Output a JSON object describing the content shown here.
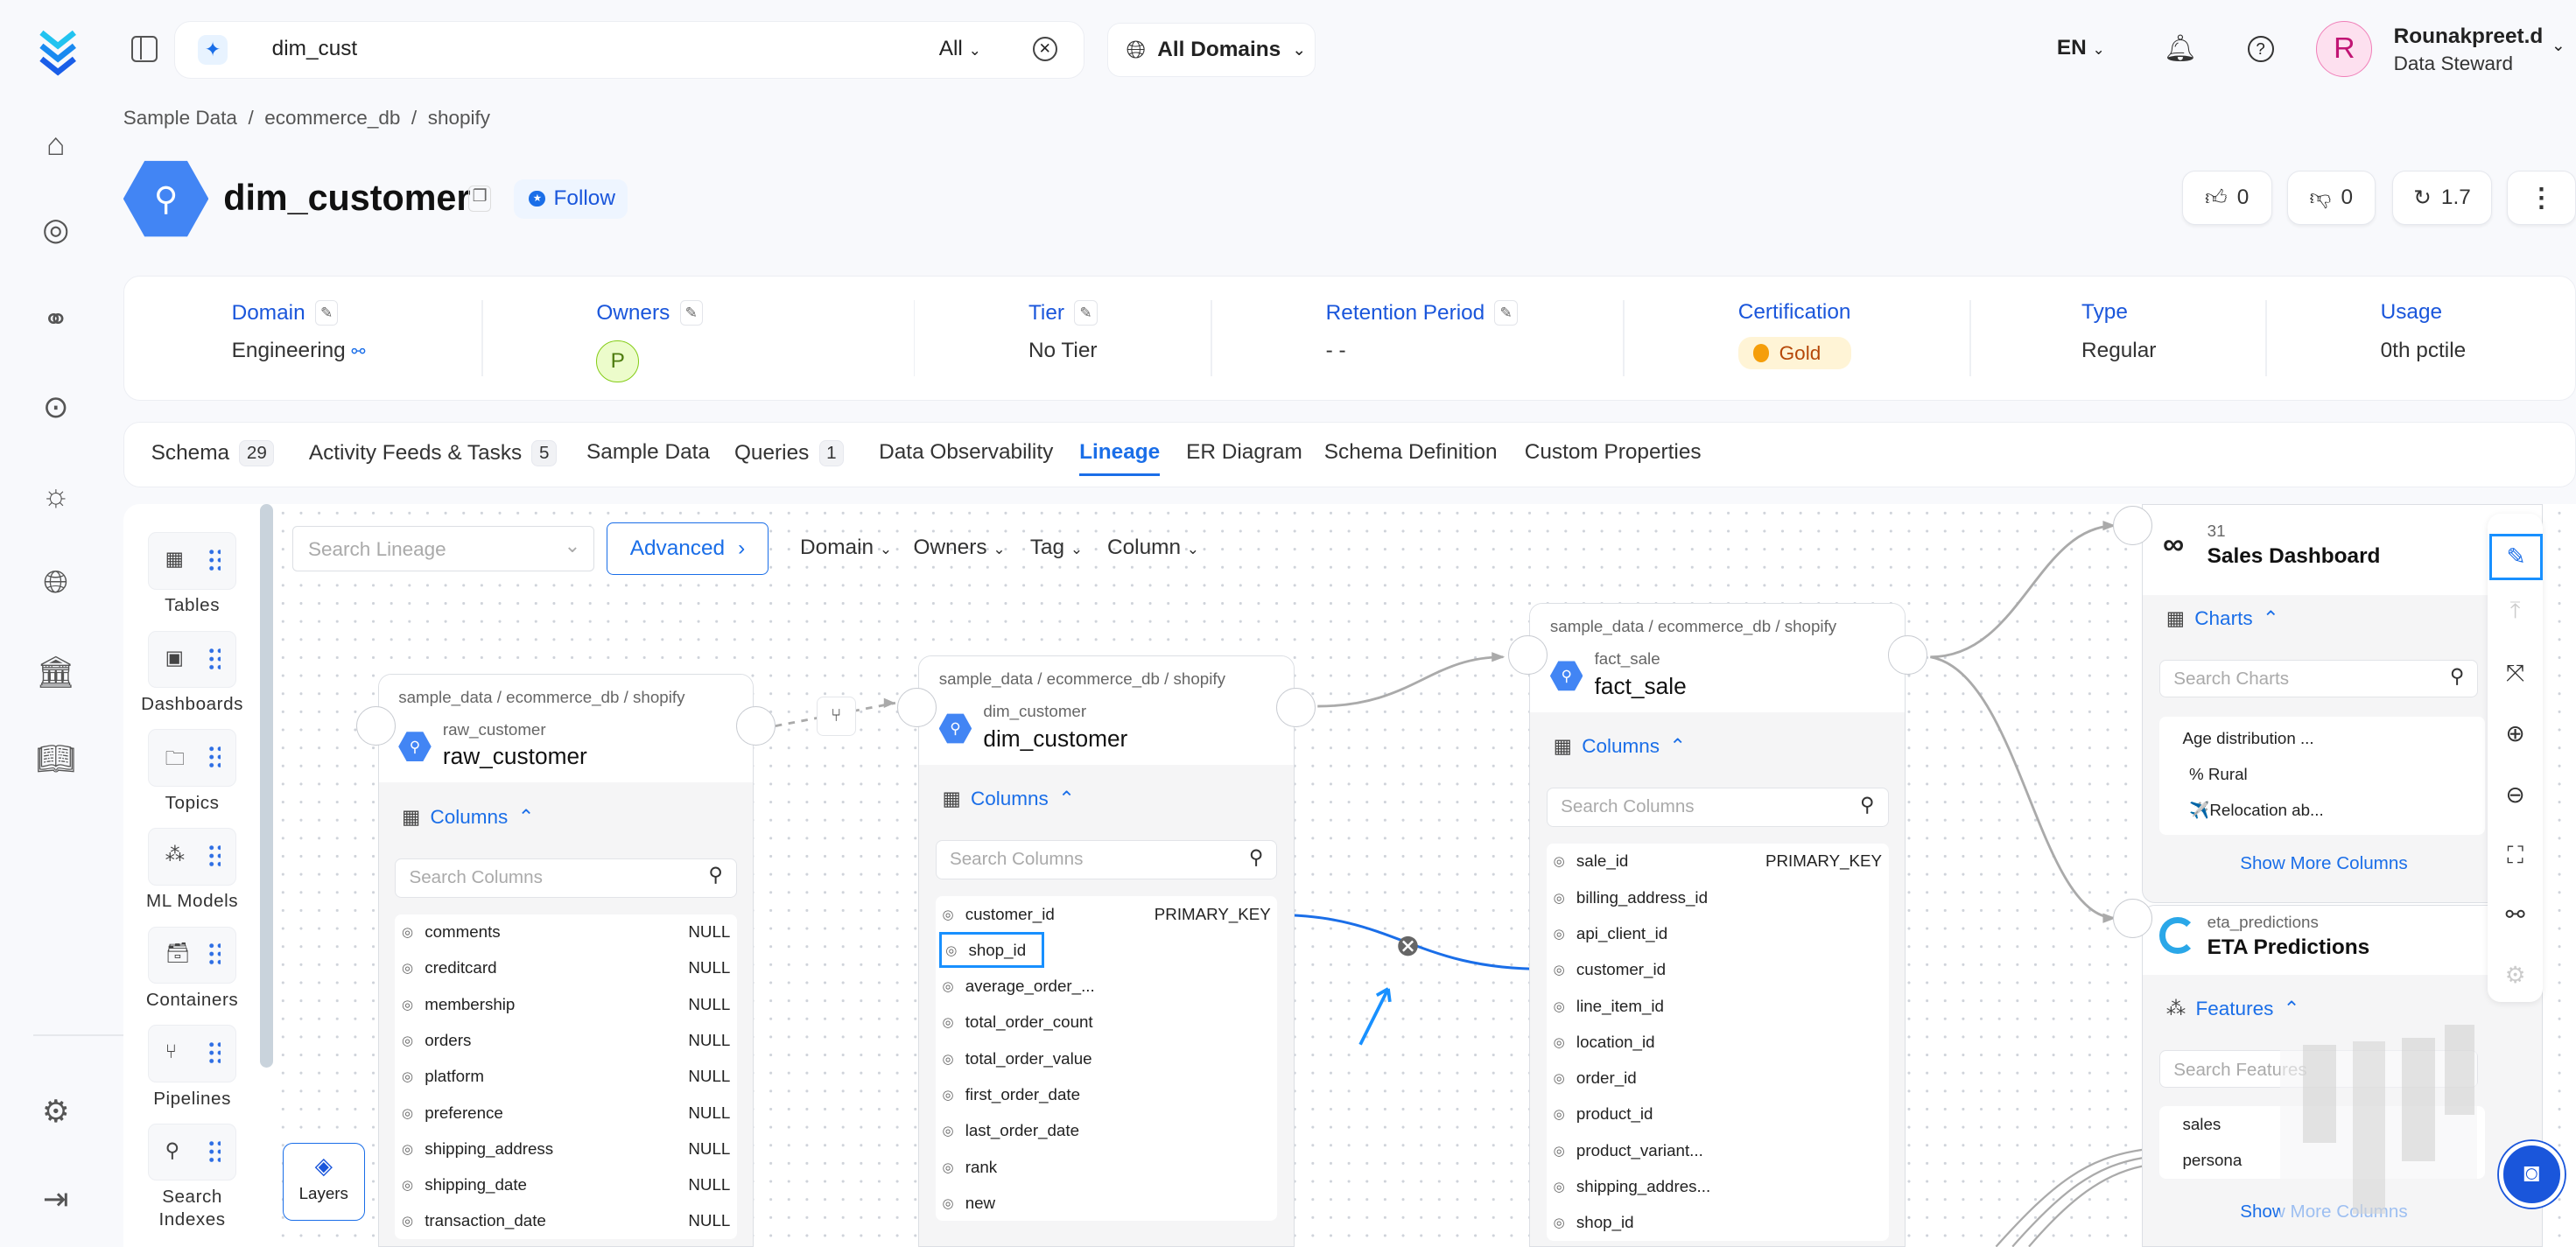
{
  "topbar": {
    "search_value": "dim_cust",
    "search_scope": "All",
    "domain_selector": "All Domains",
    "language": "EN",
    "user": {
      "initial": "R",
      "name": "Rounakpreet.d",
      "role": "Data Steward"
    }
  },
  "nav_icons": [
    "home-icon",
    "explore-icon",
    "lineage-icon",
    "observability-icon",
    "insights-icon",
    "domains-icon",
    "governance-icon",
    "glossary-icon",
    "settings-icon",
    "logout-icon"
  ],
  "breadcrumb": [
    "Sample Data",
    "ecommerce_db",
    "shopify"
  ],
  "entity": {
    "title": "dim_customer",
    "follow_label": "Follow",
    "likes": "0",
    "dislikes": "0",
    "version": "1.7"
  },
  "info": {
    "domain": {
      "label": "Domain",
      "value": "Engineering"
    },
    "owners": {
      "label": "Owners",
      "initial": "P"
    },
    "tier": {
      "label": "Tier",
      "value": "No Tier"
    },
    "retention": {
      "label": "Retention Period",
      "value": "- -"
    },
    "certification": {
      "label": "Certification",
      "value": "Gold"
    },
    "type": {
      "label": "Type",
      "value": "Regular"
    },
    "usage": {
      "label": "Usage",
      "value": "0th pctile"
    }
  },
  "tabs": [
    {
      "label": "Schema",
      "count": "29"
    },
    {
      "label": "Activity Feeds & Tasks",
      "count": "5"
    },
    {
      "label": "Sample Data"
    },
    {
      "label": "Queries",
      "count": "1"
    },
    {
      "label": "Data Observability"
    },
    {
      "label": "Lineage",
      "active": true
    },
    {
      "label": "ER Diagram"
    },
    {
      "label": "Schema Definition"
    },
    {
      "label": "Custom Properties"
    }
  ],
  "node_types": [
    "Tables",
    "Dashboards",
    "Topics",
    "ML Models",
    "Containers",
    "Pipelines",
    "Search Indexes"
  ],
  "lineage_toolbar": {
    "search_placeholder": "Search Lineage",
    "advanced": "Advanced",
    "filters": [
      "Domain",
      "Owners",
      "Tag",
      "Column"
    ],
    "layers": "Layers"
  },
  "nodes": {
    "raw_customer": {
      "breadcrumb": "sample_data  /  ecommerce_db  /  shopify",
      "small": "raw_customer",
      "name": "raw_customer",
      "columns_label": "Columns",
      "search_placeholder": "Search Columns",
      "columns": [
        [
          "comments",
          "NULL"
        ],
        [
          "creditcard",
          "NULL"
        ],
        [
          "membership",
          "NULL"
        ],
        [
          "orders",
          "NULL"
        ],
        [
          "platform",
          "NULL"
        ],
        [
          "preference",
          "NULL"
        ],
        [
          "shipping_address",
          "NULL"
        ],
        [
          "shipping_date",
          "NULL"
        ],
        [
          "transaction_date",
          "NULL"
        ]
      ]
    },
    "dim_customer": {
      "breadcrumb": "sample_data  /  ecommerce_db  /  shopify",
      "small": "dim_customer",
      "name": "dim_customer",
      "columns_label": "Columns",
      "search_placeholder": "Search Columns",
      "columns": [
        [
          "customer_id",
          "PRIMARY_KEY"
        ],
        [
          "shop_id",
          ""
        ],
        [
          "average_order_...",
          ""
        ],
        [
          "total_order_count",
          ""
        ],
        [
          "total_order_value",
          ""
        ],
        [
          "first_order_date",
          ""
        ],
        [
          "last_order_date",
          ""
        ],
        [
          "rank",
          ""
        ],
        [
          "new",
          ""
        ]
      ]
    },
    "fact_sale": {
      "breadcrumb": "sample_data  /  ecommerce_db  /  shopify",
      "small": "fact_sale",
      "name": "fact_sale",
      "columns_label": "Columns",
      "search_placeholder": "Search Columns",
      "columns": [
        [
          "sale_id",
          "PRIMARY_KEY"
        ],
        [
          "billing_address_id",
          ""
        ],
        [
          "api_client_id",
          ""
        ],
        [
          "customer_id",
          ""
        ],
        [
          "line_item_id",
          ""
        ],
        [
          "location_id",
          ""
        ],
        [
          "order_id",
          ""
        ],
        [
          "product_id",
          ""
        ],
        [
          "product_variant...",
          ""
        ],
        [
          "shipping_addres...",
          ""
        ],
        [
          "shop_id",
          ""
        ]
      ]
    },
    "sales_dashboard": {
      "small": "31",
      "name": "Sales Dashboard",
      "section_label": "Charts",
      "search_placeholder": "Search Charts",
      "items": [
        "Age distribution ...",
        "% Rural",
        "✈️Relocation ab..."
      ],
      "show_more": "Show More Columns"
    },
    "eta_predictions": {
      "small": "eta_predictions",
      "name": "ETA Predictions",
      "section_label": "Features",
      "search_placeholder": "Search Features",
      "items": [
        "sales",
        "persona"
      ],
      "show_more": "Show More Columns"
    }
  },
  "colors": {
    "accent": "#1a6ee8",
    "gold_bg": "#fff4d6",
    "gold_text": "#b54708",
    "avatar_bg": "#fde0ef",
    "avatar_text": "#c11574",
    "selection": "#1890ff"
  }
}
